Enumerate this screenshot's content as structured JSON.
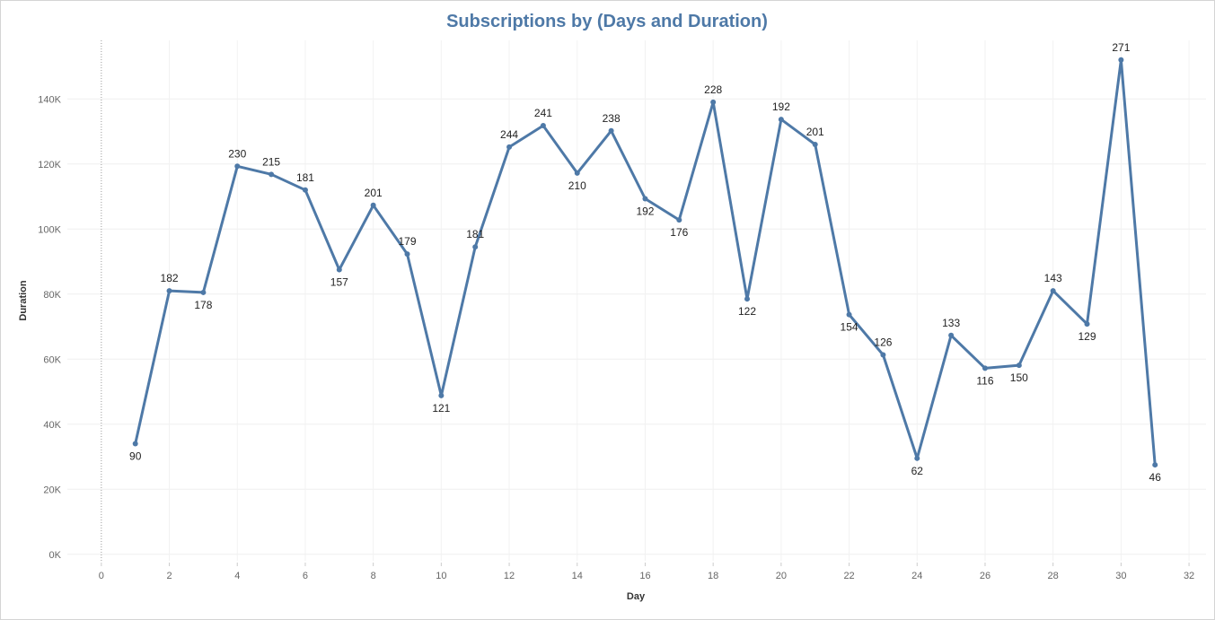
{
  "chart_data": {
    "type": "line",
    "title": "Subscriptions by (Days and Duration)",
    "xlabel": "Day",
    "ylabel": "Duration",
    "xlim": [
      -1,
      32.5
    ],
    "ylim": [
      -2000,
      158000
    ],
    "x_ticks": [
      0,
      2,
      4,
      6,
      8,
      10,
      12,
      14,
      16,
      18,
      20,
      22,
      24,
      26,
      28,
      30,
      32
    ],
    "y_ticks": [
      0,
      20000,
      40000,
      60000,
      80000,
      100000,
      120000,
      140000
    ],
    "y_tick_labels": [
      "0K",
      "20K",
      "40K",
      "60K",
      "80K",
      "100K",
      "120K",
      "140K"
    ],
    "grid": true,
    "line_color": "#4e79a7",
    "series": [
      {
        "x": [
          1,
          2,
          3,
          4,
          5,
          6,
          7,
          8,
          9,
          10,
          11,
          12,
          13,
          14,
          15,
          16,
          17,
          18,
          19,
          20,
          21,
          22,
          23,
          24,
          25,
          26,
          27,
          28,
          29,
          30,
          31
        ],
        "y": [
          34000,
          81000,
          80500,
          119300,
          116800,
          112000,
          87500,
          107300,
          92300,
          48800,
          94500,
          125200,
          131800,
          117200,
          130200,
          109300,
          102800,
          139000,
          78500,
          133700,
          126000,
          73700,
          61300,
          29500,
          67300,
          57200,
          58100,
          81000,
          70800,
          152000,
          27500
        ],
        "labels": [
          "90",
          "182",
          "178",
          "230",
          "215",
          "181",
          "157",
          "201",
          "179",
          "121",
          "181",
          "244",
          "241",
          "210",
          "238",
          "192",
          "176",
          "228",
          "122",
          "192",
          "201",
          "154",
          "126",
          "62",
          "133",
          "116",
          "150",
          "143",
          "129",
          "271",
          "46"
        ]
      }
    ]
  }
}
